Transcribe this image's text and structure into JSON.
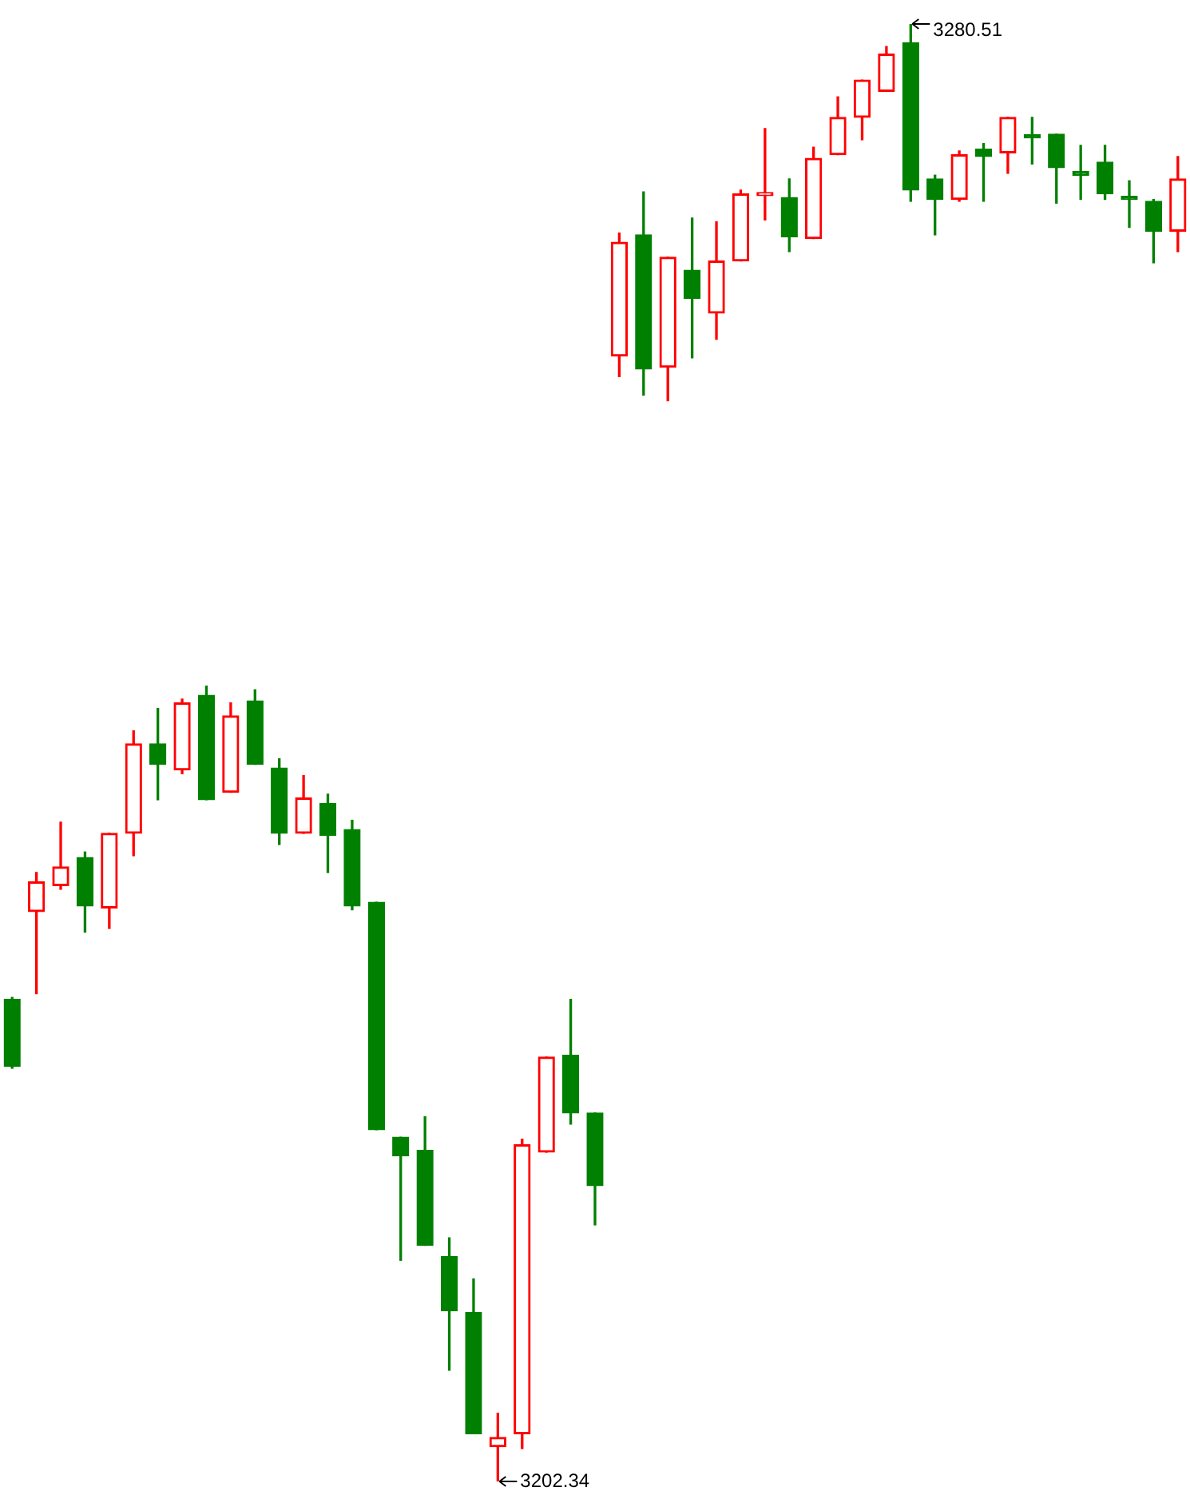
{
  "chart_data": {
    "type": "candlestick",
    "categories": [
      null,
      null,
      null,
      null,
      null,
      null,
      null,
      null,
      null,
      null,
      null,
      null,
      null,
      null,
      null,
      null,
      null,
      null,
      null,
      null,
      null,
      null,
      null,
      null,
      null,
      null,
      null,
      null,
      null,
      null,
      null,
      null,
      null,
      null,
      null,
      null,
      null,
      null,
      null,
      null,
      null,
      null,
      null,
      null,
      null,
      null,
      null,
      null,
      null
    ],
    "ohlc": [
      [
        3228.2,
        3228.3,
        3224.5,
        3224.6
      ],
      [
        3232.9,
        3235.0,
        3228.5,
        3234.5
      ],
      [
        3234.3,
        3237.7,
        3234.1,
        3235.3
      ],
      [
        3235.8,
        3236.1,
        3231.8,
        3233.2
      ],
      [
        3233.1,
        3237.1,
        3232.0,
        3237.1
      ],
      [
        3237.1,
        3242.6,
        3235.9,
        3241.9
      ],
      [
        3241.9,
        3243.8,
        3238.9,
        3240.8
      ],
      [
        3240.5,
        3244.3,
        3240.3,
        3244.1
      ],
      [
        3244.5,
        3245.0,
        3238.9,
        3238.9
      ],
      [
        3239.3,
        3244.1,
        3239.3,
        3243.4
      ],
      [
        3244.2,
        3244.8,
        3240.8,
        3240.8
      ],
      [
        3240.6,
        3241.1,
        3236.5,
        3237.1
      ],
      [
        3237.1,
        3240.2,
        3237.1,
        3239.0
      ],
      [
        3238.7,
        3239.2,
        3235.0,
        3237.0
      ],
      [
        3237.3,
        3237.8,
        3233.0,
        3233.2
      ],
      [
        3233.4,
        3233.4,
        3221.2,
        3221.2
      ],
      [
        3220.8,
        3220.8,
        3214.2,
        3219.8
      ],
      [
        3220.1,
        3221.9,
        3215.0,
        3215.0
      ],
      [
        3214.4,
        3215.4,
        3208.3,
        3211.5
      ],
      [
        3211.4,
        3213.2,
        3204.9,
        3204.9
      ],
      [
        3204.2,
        3206.0,
        3202.34,
        3204.7
      ],
      [
        3204.9,
        3220.7,
        3204.1,
        3220.4
      ],
      [
        3220.0,
        3225.1,
        3220.0,
        3225.1
      ],
      [
        3225.2,
        3228.2,
        3221.5,
        3222.1
      ],
      [
        3222.1,
        3222.1,
        3216.1,
        3218.2
      ],
      [
        3262.7,
        3269.3,
        3261.6,
        3268.8
      ],
      [
        3269.2,
        3271.5,
        3260.6,
        3262.0
      ],
      [
        3262.1,
        3268.0,
        3260.3,
        3268.0
      ],
      [
        3267.3,
        3270.1,
        3262.6,
        3265.8
      ],
      [
        3265.0,
        3269.9,
        3263.6,
        3267.8
      ],
      [
        3267.8,
        3271.6,
        3267.8,
        3271.4
      ],
      [
        3271.3,
        3274.9,
        3270.0,
        3271.4
      ],
      [
        3271.2,
        3272.2,
        3268.3,
        3269.1
      ],
      [
        3269.0,
        3273.9,
        3269.0,
        3273.3
      ],
      [
        3273.5,
        3276.6,
        3273.5,
        3275.5
      ],
      [
        3275.5,
        3277.5,
        3274.3,
        3277.5
      ],
      [
        3276.9,
        3279.3,
        3276.9,
        3278.9
      ],
      [
        3279.5,
        3280.51,
        3271.0,
        3271.6
      ],
      [
        3272.2,
        3272.4,
        3269.2,
        3271.1
      ],
      [
        3271.1,
        3273.7,
        3271.0,
        3273.5
      ],
      [
        3273.8,
        3274.1,
        3271.0,
        3273.4
      ],
      [
        3273.6,
        3275.5,
        3272.5,
        3275.5
      ],
      [
        3274.5,
        3275.5,
        3273.0,
        3274.4
      ],
      [
        3274.6,
        3274.6,
        3270.9,
        3272.8
      ],
      [
        3272.6,
        3274.0,
        3271.1,
        3272.4
      ],
      [
        3273.1,
        3274.0,
        3271.1,
        3271.4
      ],
      [
        3271.2,
        3272.1,
        3269.6,
        3271.1
      ],
      [
        3271.0,
        3271.1,
        3267.7,
        3269.4
      ],
      [
        3269.4,
        3273.4,
        3268.3,
        3272.2
      ]
    ],
    "colors": [
      "#008000",
      "#ff0000",
      "#ff0000",
      "#008000",
      "#ff0000",
      "#ff0000",
      "#008000",
      "#ff0000",
      "#008000",
      "#ff0000",
      "#008000",
      "#008000",
      "#ff0000",
      "#008000",
      "#008000",
      "#008000",
      "#008000",
      "#008000",
      "#008000",
      "#008000",
      "#ff0000",
      "#ff0000",
      "#ff0000",
      "#008000",
      "#008000",
      "#ff0000",
      "#008000",
      "#ff0000",
      "#008000",
      "#ff0000",
      "#ff0000",
      "#ff0000",
      "#008000",
      "#ff0000",
      "#ff0000",
      "#ff0000",
      "#ff0000",
      "#008000",
      "#008000",
      "#ff0000",
      "#008000",
      "#ff0000",
      "#008000",
      "#008000",
      "#008000",
      "#008000",
      "#008000",
      "#008000",
      "#ff0000"
    ],
    "annotations": [
      "3280.51",
      "3202.34"
    ]
  }
}
